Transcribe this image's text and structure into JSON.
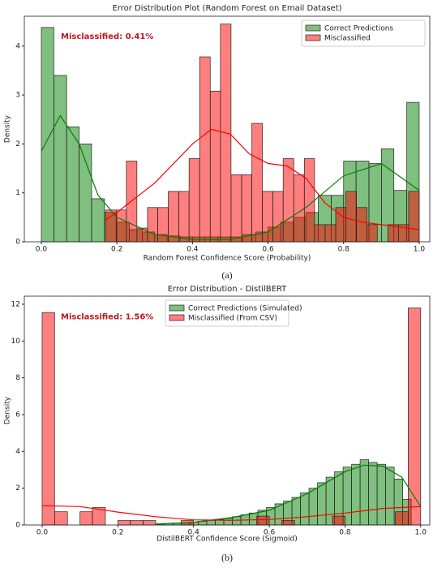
{
  "chart_data": [
    {
      "type": "histogram",
      "title": "Error Distribution Plot (Random Forest on Email Dataset)",
      "x_label": "Random Forest Confidence Score (Probability)",
      "y_label": "Density",
      "annotation": "Misclassified: 0.41%",
      "caption": "(a)",
      "xlim": [
        -0.045,
        1.028
      ],
      "ylim": [
        0,
        4.61
      ],
      "xticks": [
        {
          "value": 0,
          "label": "0.0"
        },
        0.2,
        0.4,
        0.6,
        0.8,
        {
          "value": 1,
          "label": "1.0"
        }
      ],
      "yticks": [
        0,
        1,
        2,
        3,
        4
      ],
      "legend": "upper right",
      "series": [
        {
          "name": "Correct Predictions",
          "color": "green",
          "bins": [
            0,
            0.033,
            0.067,
            0.1,
            0.133,
            0.167,
            0.2,
            0.233,
            0.267,
            0.3,
            0.333,
            0.367,
            0.4,
            0.433,
            0.467,
            0.5,
            0.533,
            0.567,
            0.6,
            0.633,
            0.667,
            0.7,
            0.733,
            0.767,
            0.8,
            0.833,
            0.867,
            0.9,
            0.933,
            0.967,
            1
          ],
          "values": [
            4.38,
            3.4,
            2.35,
            2.0,
            0.88,
            0.6,
            0.4,
            0.25,
            0.2,
            0.15,
            0.12,
            0.1,
            0.1,
            0.1,
            0.1,
            0.1,
            0.15,
            0.2,
            0.3,
            0.4,
            0.5,
            0.6,
            0.95,
            0.95,
            1.65,
            1.65,
            1.6,
            1.9,
            1.05,
            2.85
          ],
          "kde": {
            "x": [
              0,
              0.05,
              0.1,
              0.15,
              0.2,
              0.3,
              0.4,
              0.5,
              0.6,
              0.7,
              0.8,
              0.9,
              1
            ],
            "values": [
              1.85,
              2.58,
              2.0,
              0.95,
              0.5,
              0.15,
              0.05,
              0.05,
              0.2,
              0.7,
              1.35,
              1.6,
              1.05
            ]
          }
        },
        {
          "name": "Misclassified",
          "color": "red",
          "bins": [
            0.17,
            0.198,
            0.225,
            0.253,
            0.281,
            0.308,
            0.336,
            0.364,
            0.391,
            0.419,
            0.447,
            0.474,
            0.502,
            0.53,
            0.557,
            0.585,
            0.613,
            0.64,
            0.668,
            0.696,
            0.723,
            0.751,
            0.779,
            0.806,
            0.834,
            0.862,
            0.889,
            0.917,
            0.945,
            0.972,
            1
          ],
          "values": [
            0.65,
            0.65,
            1.65,
            0.28,
            0.7,
            0.7,
            1.03,
            1.03,
            1.7,
            3.78,
            3.08,
            4.45,
            1.37,
            1.37,
            2.42,
            1.03,
            1.03,
            1.7,
            1.37,
            1.7,
            0.35,
            0.35,
            0.7,
            1.03,
            0.7,
            0.35,
            0,
            0.35,
            0.35,
            1.03
          ],
          "kde": {
            "x": [
              0.17,
              0.2,
              0.3,
              0.4,
              0.45,
              0.5,
              0.55,
              0.6,
              0.65,
              0.7,
              0.75,
              0.8,
              0.85,
              0.9,
              1
            ],
            "values": [
              0.45,
              0.6,
              1.2,
              2.0,
              2.3,
              2.2,
              1.8,
              1.6,
              1.55,
              1.3,
              0.8,
              0.5,
              0.4,
              0.35,
              0.25
            ]
          }
        }
      ]
    },
    {
      "type": "histogram",
      "title": "Error Distribution - DistilBERT",
      "x_label": "DistilBERT Confidence Score (Sigmoid)",
      "y_label": "Density",
      "annotation": "Misclassified: 1.56%",
      "caption": "(b)",
      "xlim": [
        -0.047,
        1.024
      ],
      "ylim": [
        0,
        12.44
      ],
      "xticks": [
        {
          "value": 0,
          "label": "0.0"
        },
        0.2,
        0.4,
        0.6,
        0.8,
        {
          "value": 1,
          "label": "1.0"
        }
      ],
      "yticks": [
        0,
        2,
        4,
        6,
        8,
        10,
        12
      ],
      "legend": "upper center",
      "series": [
        {
          "name": "Correct Predictions (Simulated)",
          "color": "green",
          "bins": [
            0.3,
            0.3225,
            0.345,
            0.3675,
            0.39,
            0.4125,
            0.435,
            0.4575,
            0.48,
            0.5025,
            0.525,
            0.5475,
            0.57,
            0.5925,
            0.615,
            0.6375,
            0.66,
            0.6825,
            0.705,
            0.7275,
            0.75,
            0.7725,
            0.795,
            0.8175,
            0.84,
            0.8625,
            0.885,
            0.9075,
            0.93,
            0.9525,
            0.975
          ],
          "values": [
            0.05,
            0.08,
            0.1,
            0.12,
            0.15,
            0.2,
            0.25,
            0.3,
            0.35,
            0.45,
            0.55,
            0.65,
            0.8,
            0.95,
            1.15,
            1.3,
            1.5,
            1.75,
            2.0,
            2.3,
            2.6,
            2.9,
            3.15,
            3.3,
            3.55,
            3.4,
            3.3,
            3.15,
            2.5,
            1.4
          ],
          "kde": {
            "x": [
              0.3,
              0.4,
              0.5,
              0.6,
              0.7,
              0.8,
              0.85,
              0.9,
              0.95,
              1
            ],
            "values": [
              0.05,
              0.15,
              0.4,
              0.8,
              1.7,
              2.9,
              3.25,
              3.2,
              2.6,
              1.0
            ]
          }
        },
        {
          "name": "Misclassified (From CSV)",
          "color": "red",
          "bins": [
            0,
            0.033,
            0.067,
            0.1,
            0.133,
            0.167,
            0.2,
            0.233,
            0.267,
            0.3,
            0.333,
            0.367,
            0.4,
            0.433,
            0.467,
            0.5,
            0.533,
            0.567,
            0.6,
            0.633,
            0.667,
            0.7,
            0.733,
            0.767,
            0.8,
            0.833,
            0.867,
            0.9,
            0.933,
            0.967,
            1
          ],
          "values": [
            11.55,
            0.72,
            0,
            0.72,
            0.95,
            0,
            0.24,
            0.24,
            0.24,
            0,
            0,
            0.24,
            0,
            0,
            0,
            0,
            0,
            0.48,
            0,
            0.24,
            0,
            0,
            0,
            0.48,
            0,
            0,
            0,
            0,
            0.72,
            11.8
          ],
          "kde": {
            "x": [
              0,
              0.1,
              0.2,
              0.3,
              0.4,
              0.5,
              0.6,
              0.7,
              0.8,
              0.9,
              1
            ],
            "values": [
              1.05,
              1.0,
              0.7,
              0.45,
              0.28,
              0.25,
              0.3,
              0.45,
              0.65,
              0.9,
              1.0
            ]
          }
        }
      ]
    }
  ]
}
